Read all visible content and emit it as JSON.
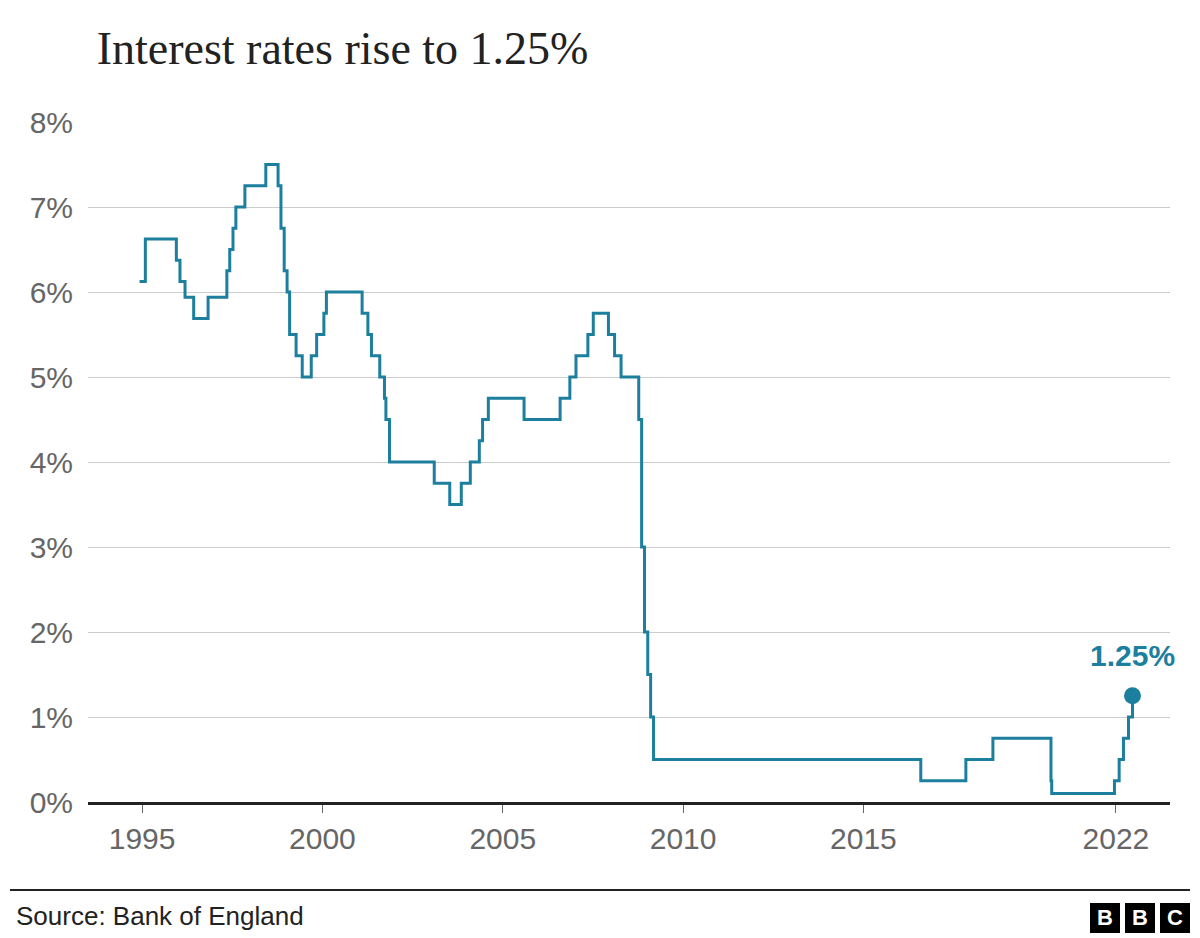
{
  "chart_data": {
    "type": "line",
    "title": "Interest rates rise to 1.25%",
    "source": "Source: Bank of England",
    "logo": [
      "B",
      "B",
      "C"
    ],
    "line_style": "step",
    "marker": "circle",
    "grid": true,
    "xlim": [
      1993.5,
      2023.5
    ],
    "xticks": [
      1995,
      2000,
      2005,
      2010,
      2015,
      2022
    ],
    "ylim": [
      0,
      8
    ],
    "yticks": [
      {
        "value": 0,
        "label": "0%"
      },
      {
        "value": 1,
        "label": "1%"
      },
      {
        "value": 2,
        "label": "2%"
      },
      {
        "value": 3,
        "label": "3%"
      },
      {
        "value": 4,
        "label": "4%"
      },
      {
        "value": 5,
        "label": "5%"
      },
      {
        "value": 6,
        "label": "6%"
      },
      {
        "value": 7,
        "label": "7%"
      },
      {
        "value": 8,
        "label": "8%"
      }
    ],
    "series": [
      {
        "color": "#1d7f9e",
        "x": [
          1994.93,
          1995.09,
          1995.95,
          1996.05,
          1996.19,
          1996.43,
          1996.83,
          1997.35,
          1997.43,
          1997.52,
          1997.6,
          1997.85,
          1998.43,
          1998.77,
          1998.85,
          1998.94,
          1999.02,
          1999.09,
          1999.27,
          1999.44,
          1999.69,
          1999.84,
          2000.04,
          2000.11,
          2001.1,
          2001.26,
          2001.36,
          2001.59,
          2001.72,
          2001.76,
          2001.86,
          2003.1,
          2003.53,
          2003.85,
          2004.1,
          2004.35,
          2004.44,
          2004.6,
          2005.59,
          2006.59,
          2006.86,
          2007.03,
          2007.36,
          2007.51,
          2007.93,
          2008.1,
          2008.28,
          2008.77,
          2008.85,
          2008.93,
          2009.02,
          2009.1,
          2009.18,
          2016.59,
          2017.84,
          2018.59,
          2020.2,
          2020.22,
          2021.96,
          2022.09,
          2022.21,
          2022.35,
          2022.46
        ],
        "values": [
          6.125,
          6.625,
          6.375,
          6.125,
          5.9375,
          5.6875,
          5.9375,
          6.25,
          6.5,
          6.75,
          7,
          7.25,
          7.5,
          7.25,
          6.75,
          6.25,
          6,
          5.5,
          5.25,
          5,
          5.25,
          5.5,
          5.75,
          6,
          5.75,
          5.5,
          5.25,
          5,
          4.75,
          4.5,
          4,
          3.75,
          3.5,
          3.75,
          4,
          4.25,
          4.5,
          4.75,
          4.5,
          4.75,
          5,
          5.25,
          5.5,
          5.75,
          5.5,
          5.25,
          5,
          4.5,
          3,
          2,
          1.5,
          1,
          0.5,
          0.25,
          0.5,
          0.75,
          0.25,
          0.1,
          0.25,
          0.5,
          0.75,
          1,
          1.25
        ]
      }
    ],
    "annotations": [
      {
        "x": 2022.46,
        "y": 1.25,
        "text": "1.25%"
      }
    ]
  }
}
